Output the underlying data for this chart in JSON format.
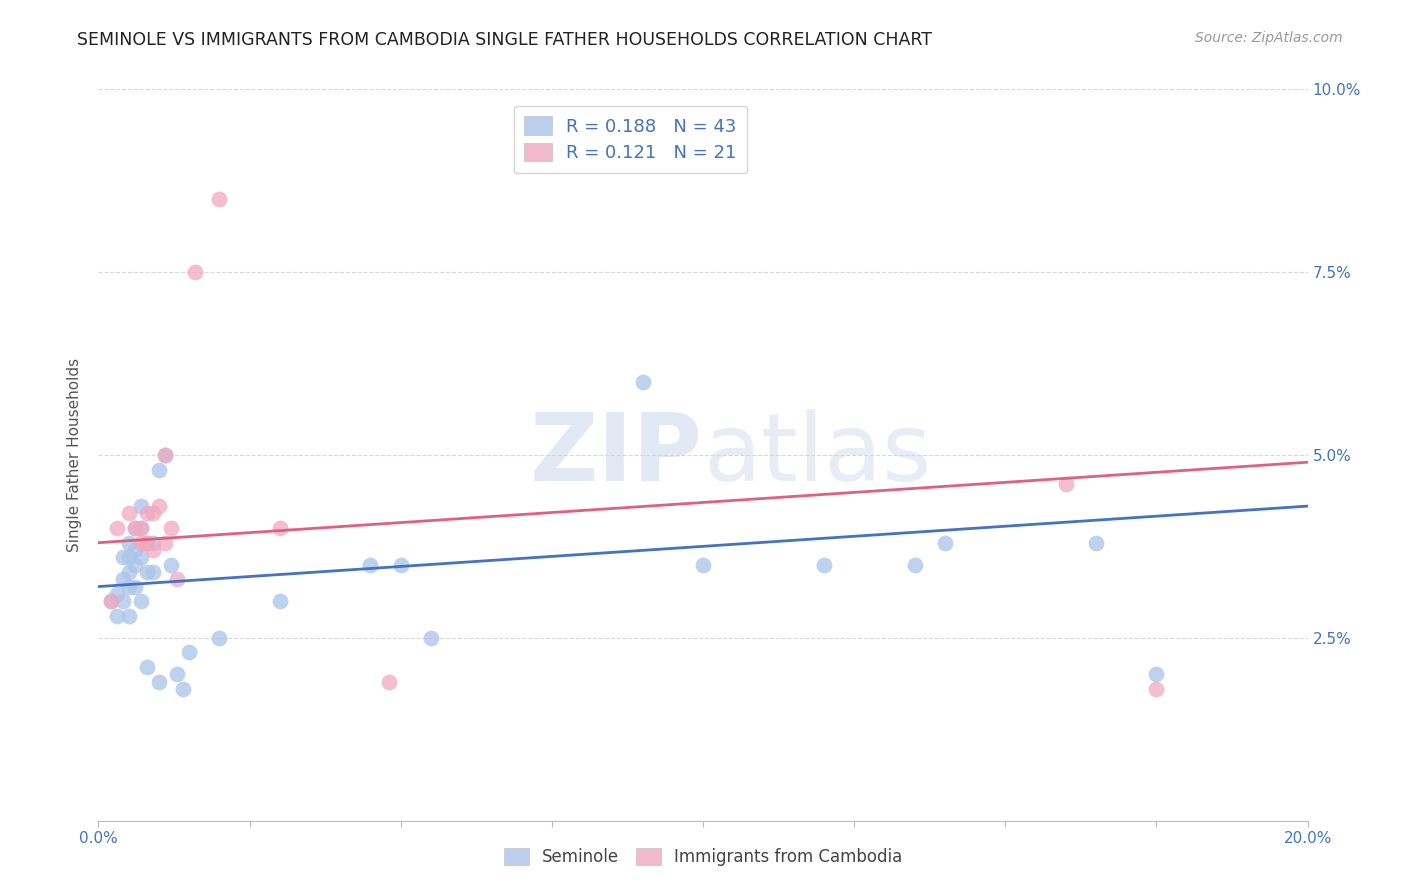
{
  "title": "SEMINOLE VS IMMIGRANTS FROM CAMBODIA SINGLE FATHER HOUSEHOLDS CORRELATION CHART",
  "source": "Source: ZipAtlas.com",
  "ylabel": "Single Father Households",
  "xlim": [
    0.0,
    0.2
  ],
  "ylim": [
    0.0,
    0.1
  ],
  "xticks": [
    0.0,
    0.025,
    0.05,
    0.075,
    0.1,
    0.125,
    0.15,
    0.175,
    0.2
  ],
  "yticks": [
    0.0,
    0.025,
    0.05,
    0.075,
    0.1
  ],
  "ytick_labels": [
    "",
    "2.5%",
    "5.0%",
    "7.5%",
    "10.0%"
  ],
  "xtick_labels": [
    "0.0%",
    "",
    "",
    "",
    "",
    "",
    "",
    "",
    "20.0%"
  ],
  "background_color": "#ffffff",
  "grid_color": "#d0d0d0",
  "seminole_color": "#aac4e8",
  "cambodia_color": "#f0a8c0",
  "seminole_line_color": "#4472c4",
  "cambodia_line_color": "#e06080",
  "legend_r_seminole": "0.188",
  "legend_n_seminole": "43",
  "legend_r_cambodia": "0.121",
  "legend_n_cambodia": "21",
  "watermark_zip": "ZIP",
  "watermark_atlas": "atlas",
  "seminole_x": [
    0.002,
    0.003,
    0.003,
    0.004,
    0.004,
    0.004,
    0.005,
    0.005,
    0.005,
    0.005,
    0.005,
    0.006,
    0.006,
    0.006,
    0.006,
    0.007,
    0.007,
    0.007,
    0.007,
    0.008,
    0.008,
    0.008,
    0.009,
    0.009,
    0.01,
    0.01,
    0.011,
    0.012,
    0.013,
    0.014,
    0.015,
    0.02,
    0.03,
    0.045,
    0.05,
    0.055,
    0.09,
    0.1,
    0.12,
    0.135,
    0.14,
    0.165,
    0.175
  ],
  "seminole_y": [
    0.03,
    0.031,
    0.028,
    0.036,
    0.033,
    0.03,
    0.038,
    0.036,
    0.034,
    0.032,
    0.028,
    0.04,
    0.037,
    0.035,
    0.032,
    0.043,
    0.04,
    0.036,
    0.03,
    0.038,
    0.034,
    0.021,
    0.038,
    0.034,
    0.048,
    0.019,
    0.05,
    0.035,
    0.02,
    0.018,
    0.023,
    0.025,
    0.03,
    0.035,
    0.035,
    0.025,
    0.06,
    0.035,
    0.035,
    0.035,
    0.038,
    0.038,
    0.02
  ],
  "cambodia_x": [
    0.002,
    0.003,
    0.005,
    0.006,
    0.007,
    0.007,
    0.008,
    0.008,
    0.009,
    0.009,
    0.01,
    0.011,
    0.011,
    0.012,
    0.013,
    0.016,
    0.02,
    0.03,
    0.048,
    0.16,
    0.175
  ],
  "cambodia_y": [
    0.03,
    0.04,
    0.042,
    0.04,
    0.04,
    0.038,
    0.042,
    0.038,
    0.042,
    0.037,
    0.043,
    0.038,
    0.05,
    0.04,
    0.033,
    0.075,
    0.085,
    0.04,
    0.019,
    0.046,
    0.018
  ]
}
